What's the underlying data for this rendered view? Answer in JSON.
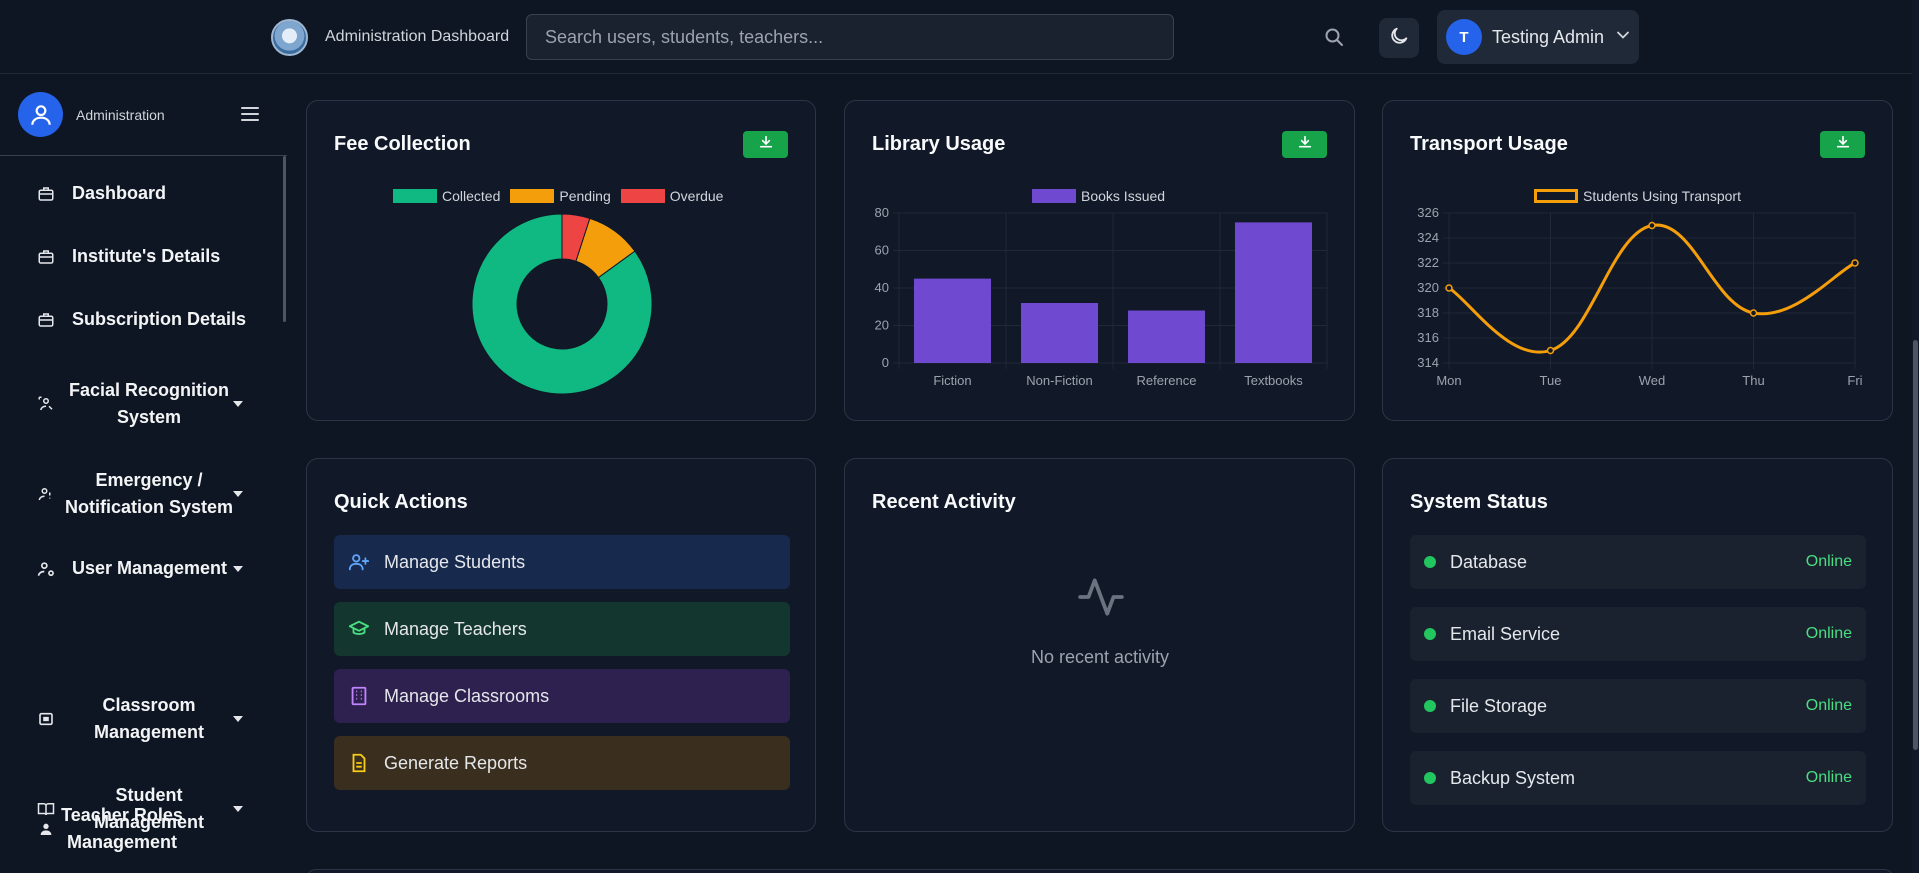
{
  "header": {
    "app_title": "Administration Dashboard",
    "search_placeholder": "Search users, students, teachers...",
    "user_initial": "T",
    "user_name": "Testing Admin"
  },
  "sidebar": {
    "role": "Administration",
    "items": [
      {
        "label": "Dashboard",
        "icon": "briefcase-icon",
        "has_submenu": false
      },
      {
        "label": "Institute's Details",
        "icon": "briefcase-icon",
        "has_submenu": false
      },
      {
        "label": "Subscription Details",
        "icon": "briefcase-icon",
        "has_submenu": false
      },
      {
        "label": "Facial Recognition System",
        "label_line1": "Facial Recognition",
        "label_line2": "System",
        "icon": "user-scan-icon",
        "has_submenu": true
      },
      {
        "label": "Emergency / Notification System",
        "label_line1": "Emergency /",
        "label_line2": "Notification System",
        "icon": "alert-user-icon",
        "has_submenu": true
      },
      {
        "label": "User Management",
        "icon": "users-cog-icon",
        "has_submenu": true
      },
      {
        "label": "Classroom Management",
        "label_line1": "Classroom",
        "label_line2": "Management",
        "icon": "board-icon",
        "has_submenu": true
      },
      {
        "label": "Student Management",
        "label_line1": "Student",
        "label_line2": "Management",
        "icon": "book-icon",
        "has_submenu": true
      },
      {
        "label": "Teacher Roles Management",
        "label_line1": "Teacher Roles",
        "label_line2": "Management",
        "icon": "person-icon",
        "has_submenu": false
      }
    ]
  },
  "cards": {
    "fee": {
      "title": "Fee Collection"
    },
    "library": {
      "title": "Library Usage"
    },
    "transport": {
      "title": "Transport Usage"
    },
    "quick_actions": {
      "title": "Quick Actions",
      "items": [
        {
          "label": "Manage Students",
          "icon": "user-plus-icon",
          "color": "#60a5fa",
          "bg": "#172a4e"
        },
        {
          "label": "Manage Teachers",
          "icon": "graduation-cap-icon",
          "color": "#4ade80",
          "bg": "#13372f"
        },
        {
          "label": "Manage Classrooms",
          "icon": "building-icon",
          "color": "#c084fc",
          "bg": "#2e2150"
        },
        {
          "label": "Generate Reports",
          "icon": "document-icon",
          "color": "#facc15",
          "bg": "#3a2f1f"
        }
      ]
    },
    "recent_activity": {
      "title": "Recent Activity",
      "empty_text": "No recent activity"
    },
    "system_status": {
      "title": "System Status",
      "items": [
        {
          "name": "Database",
          "status": "Online"
        },
        {
          "name": "Email Service",
          "status": "Online"
        },
        {
          "name": "File Storage",
          "status": "Online"
        },
        {
          "name": "Backup System",
          "status": "Online"
        }
      ]
    }
  },
  "chart_data": [
    {
      "type": "pie",
      "title": "Fee Collection",
      "donut": true,
      "legend_position": "top",
      "categories": [
        "Collected",
        "Pending",
        "Overdue"
      ],
      "values": [
        85,
        10,
        5
      ],
      "colors": [
        "#10b981",
        "#f59e0b",
        "#ef4444"
      ]
    },
    {
      "type": "bar",
      "title": "Library Usage",
      "legend_position": "top",
      "categories": [
        "Fiction",
        "Non-Fiction",
        "Reference",
        "Textbooks"
      ],
      "series": [
        {
          "name": "Books Issued",
          "values": [
            45,
            32,
            28,
            75
          ],
          "color": "#7049d1"
        }
      ],
      "ylim": [
        0,
        80
      ],
      "yticks": [
        0,
        20,
        40,
        60,
        80
      ],
      "grid": true
    },
    {
      "type": "line",
      "title": "Transport Usage",
      "legend_position": "top",
      "categories": [
        "Mon",
        "Tue",
        "Wed",
        "Thu",
        "Fri"
      ],
      "series": [
        {
          "name": "Students Using Transport",
          "values": [
            320,
            315,
            325,
            318,
            322
          ],
          "color": "#f59e0b"
        }
      ],
      "ylim": [
        314,
        326
      ],
      "yticks": [
        314,
        316,
        318,
        320,
        322,
        324,
        326
      ],
      "grid": true
    }
  ]
}
